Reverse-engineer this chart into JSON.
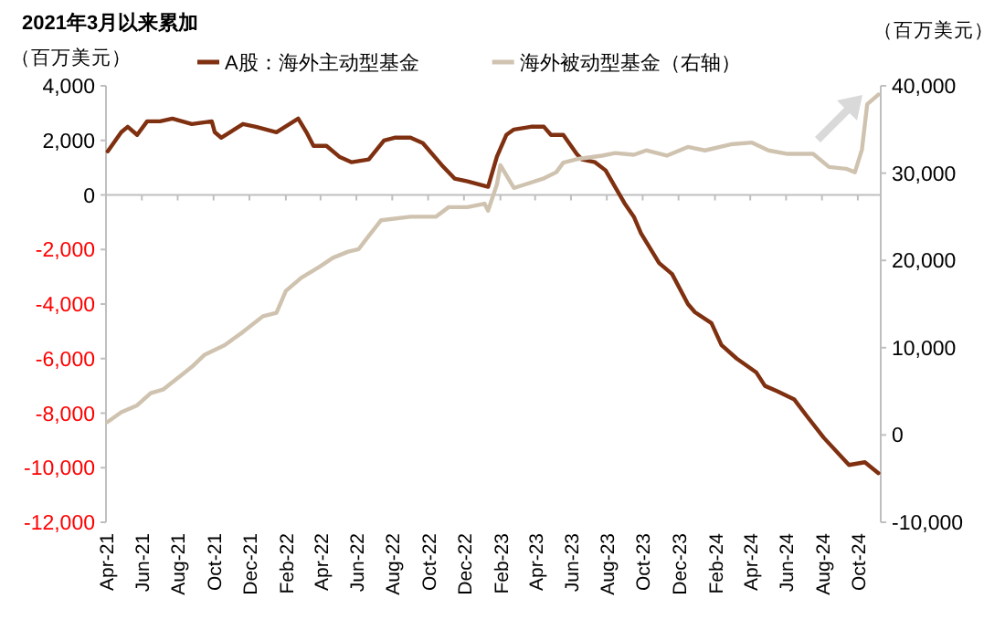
{
  "chart_data": {
    "type": "line",
    "title": "2021年3月以来累加",
    "ylabel": "（百万美元）",
    "y2label": "（百万美元）",
    "legend": "top",
    "marker": "none",
    "line_style": "solid",
    "xlim": [
      "2021-04-01",
      "2024-11-09"
    ],
    "xticks": [
      {
        "value": "2021-04-01",
        "label": "Apr-21"
      },
      {
        "value": "2021-06-01",
        "label": "Jun-21"
      },
      {
        "value": "2021-08-01",
        "label": "Aug-21"
      },
      {
        "value": "2021-10-01",
        "label": "Oct-21"
      },
      {
        "value": "2021-12-01",
        "label": "Dec-21"
      },
      {
        "value": "2022-02-01",
        "label": "Feb-22"
      },
      {
        "value": "2022-04-01",
        "label": "Apr-22"
      },
      {
        "value": "2022-06-01",
        "label": "Jun-22"
      },
      {
        "value": "2022-08-01",
        "label": "Aug-22"
      },
      {
        "value": "2022-10-01",
        "label": "Oct-22"
      },
      {
        "value": "2022-12-01",
        "label": "Dec-22"
      },
      {
        "value": "2023-02-01",
        "label": "Feb-23"
      },
      {
        "value": "2023-04-01",
        "label": "Apr-23"
      },
      {
        "value": "2023-06-01",
        "label": "Jun-23"
      },
      {
        "value": "2023-08-01",
        "label": "Aug-23"
      },
      {
        "value": "2023-10-01",
        "label": "Oct-23"
      },
      {
        "value": "2023-12-01",
        "label": "Dec-23"
      },
      {
        "value": "2024-02-01",
        "label": "Feb-24"
      },
      {
        "value": "2024-04-01",
        "label": "Apr-24"
      },
      {
        "value": "2024-06-01",
        "label": "Jun-24"
      },
      {
        "value": "2024-08-01",
        "label": "Aug-24"
      },
      {
        "value": "2024-10-01",
        "label": "Oct-24"
      }
    ],
    "ylim": [
      -12000,
      4000
    ],
    "yticks": [
      {
        "value": -12000,
        "label": "-12,000"
      },
      {
        "value": -10000,
        "label": "-10,000"
      },
      {
        "value": -8000,
        "label": "-8,000"
      },
      {
        "value": -6000,
        "label": "-6,000"
      },
      {
        "value": -4000,
        "label": "-4,000"
      },
      {
        "value": -2000,
        "label": "-2,000"
      },
      0,
      {
        "value": 2000,
        "label": "2,000"
      },
      {
        "value": 4000,
        "label": "4,000"
      }
    ],
    "y2lim": [
      -10000,
      40000
    ],
    "y2ticks": [
      {
        "value": -10000,
        "label": "-10,000"
      },
      0,
      {
        "value": 10000,
        "label": "10,000"
      },
      {
        "value": 20000,
        "label": "20,000"
      },
      {
        "value": 30000,
        "label": "30,000"
      },
      {
        "value": 40000,
        "label": "40,000"
      }
    ],
    "series": [
      {
        "name": "A股：海外主动型基金",
        "color": "#7f3010",
        "x": [
          "2021-04-04",
          "2021-04-27",
          "2021-05-08",
          "2021-05-24",
          "2021-06-10",
          "2021-07-02",
          "2021-07-23",
          "2021-08-25",
          "2021-09-28",
          "2021-10-03",
          "2021-10-14",
          "2021-10-29",
          "2021-11-20",
          "2021-12-12",
          "2022-01-16",
          "2022-02-22",
          "2022-03-08",
          "2022-03-20",
          "2022-04-11",
          "2022-05-03",
          "2022-05-24",
          "2022-06-22",
          "2022-07-18",
          "2022-08-05",
          "2022-09-01",
          "2022-09-22",
          "2022-10-24",
          "2022-11-15",
          "2022-12-07",
          "2023-01-11",
          "2023-01-26",
          "2023-02-11",
          "2023-02-24",
          "2023-03-25",
          "2023-04-16",
          "2023-04-28",
          "2023-05-19",
          "2023-06-11",
          "2023-06-20",
          "2023-07-12",
          "2023-07-30",
          "2023-08-15",
          "2023-08-31",
          "2023-09-16",
          "2023-09-28",
          "2023-10-29",
          "2023-11-20",
          "2023-12-17",
          "2023-12-29",
          "2024-01-26",
          "2024-02-12",
          "2024-03-09",
          "2024-04-11",
          "2024-04-26",
          "2024-05-17",
          "2024-06-15",
          "2024-07-06",
          "2024-08-04",
          "2024-09-16",
          "2024-10-13",
          "2024-11-05"
        ],
        "values": [
          1600,
          2300,
          2500,
          2200,
          2700,
          2700,
          2800,
          2600,
          2700,
          2300,
          2100,
          2300,
          2600,
          2500,
          2300,
          2800,
          2300,
          1800,
          1800,
          1400,
          1200,
          1300,
          2000,
          2100,
          2100,
          1900,
          1100,
          600,
          500,
          300,
          1400,
          2200,
          2400,
          2500,
          2500,
          2200,
          2200,
          1500,
          1300,
          1200,
          900,
          300,
          -300,
          -800,
          -1400,
          -2500,
          -2900,
          -4000,
          -4300,
          -4700,
          -5500,
          -6000,
          -6500,
          -7000,
          -7200,
          -7500,
          -8100,
          -8900,
          -9900,
          -9800,
          -10200
        ]
      },
      {
        "name": "海外被动型基金（右轴）",
        "color": "#cfc3b0",
        "axis": "y2",
        "x": [
          "2021-04-04",
          "2021-04-27",
          "2021-05-24",
          "2021-06-16",
          "2021-07-07",
          "2021-08-10",
          "2021-08-25",
          "2021-09-16",
          "2021-10-20",
          "2021-11-20",
          "2021-12-24",
          "2022-01-16",
          "2022-02-01",
          "2022-02-27",
          "2022-03-31",
          "2022-04-22",
          "2022-05-18",
          "2022-06-05",
          "2022-06-22",
          "2022-07-13",
          "2022-09-01",
          "2022-10-14",
          "2022-11-05",
          "2022-12-07",
          "2023-01-05",
          "2023-01-11",
          "2023-01-26",
          "2023-02-01",
          "2023-02-24",
          "2023-03-15",
          "2023-04-16",
          "2023-05-07",
          "2023-05-19",
          "2023-06-11",
          "2023-07-24",
          "2023-08-15",
          "2023-09-16",
          "2023-10-07",
          "2023-11-11",
          "2023-12-17",
          "2024-01-15",
          "2024-02-28",
          "2024-04-04",
          "2024-05-02",
          "2024-06-04",
          "2024-07-17",
          "2024-08-13",
          "2024-09-11",
          "2024-09-26",
          "2024-10-08",
          "2024-10-17",
          "2024-11-05"
        ],
        "values": [
          1500,
          2600,
          3400,
          4800,
          5200,
          7000,
          7800,
          9200,
          10300,
          11800,
          13600,
          14000,
          16500,
          18000,
          19300,
          20300,
          21000,
          21300,
          22800,
          24600,
          25000,
          25000,
          26100,
          26100,
          26500,
          25700,
          28700,
          30900,
          28300,
          28700,
          29400,
          30100,
          31200,
          31600,
          32000,
          32300,
          32100,
          32600,
          32000,
          33000,
          32600,
          33300,
          33500,
          32600,
          32200,
          32200,
          30700,
          30500,
          30100,
          32700,
          37900,
          39000
        ]
      }
    ]
  }
}
